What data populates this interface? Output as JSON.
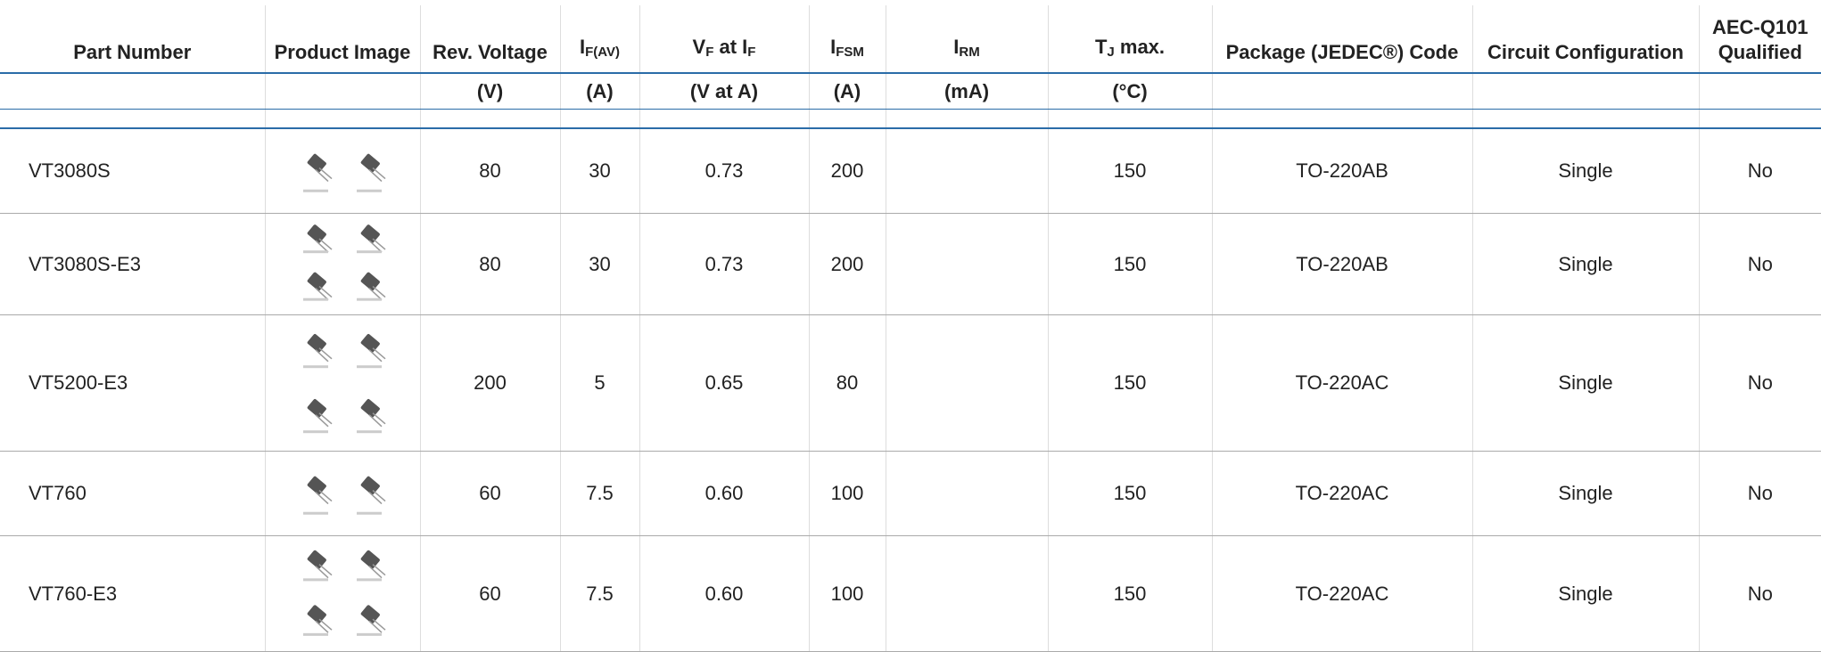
{
  "table": {
    "headers": [
      [
        "Part Number"
      ],
      [
        "Product Image"
      ],
      [
        "Rev. Voltage"
      ],
      [
        "I",
        {
          "sub": "F(AV)"
        }
      ],
      [
        "V",
        {
          "sub": "F"
        },
        " at I",
        {
          "sub": "F"
        }
      ],
      [
        "I",
        {
          "sub": "FSM"
        }
      ],
      [
        "I",
        {
          "sub": "RM"
        }
      ],
      [
        "T",
        {
          "sub": "J"
        },
        " max."
      ],
      [
        "Package (JEDEC®) Code"
      ],
      [
        "Circuit Configuration"
      ],
      [
        "AEC-Q101 Qualified"
      ]
    ],
    "units": [
      null,
      null,
      "(V)",
      "(A)",
      "(V at A)",
      "(A)",
      "(mA)",
      "(°C)",
      null,
      null,
      null
    ],
    "rows": [
      [
        "VT3080S",
        null,
        "80",
        "30",
        "0.73",
        "200",
        null,
        "150",
        "TO-220AB",
        "Single",
        "No"
      ],
      [
        "VT3080S-E3",
        null,
        "80",
        "30",
        "0.73",
        "200",
        null,
        "150",
        "TO-220AB",
        "Single",
        "No"
      ],
      [
        "VT5200-E3",
        null,
        "200",
        "5",
        "0.65",
        "80",
        null,
        "150",
        "TO-220AC",
        "Single",
        "No"
      ],
      [
        "VT760",
        null,
        "60",
        "7.5",
        "0.60",
        "100",
        null,
        "150",
        "TO-220AC",
        "Single",
        "No"
      ],
      [
        "VT760-E3",
        null,
        "60",
        "7.5",
        "0.60",
        "100",
        null,
        "150",
        "TO-220AC",
        "Single",
        "No"
      ]
    ]
  }
}
